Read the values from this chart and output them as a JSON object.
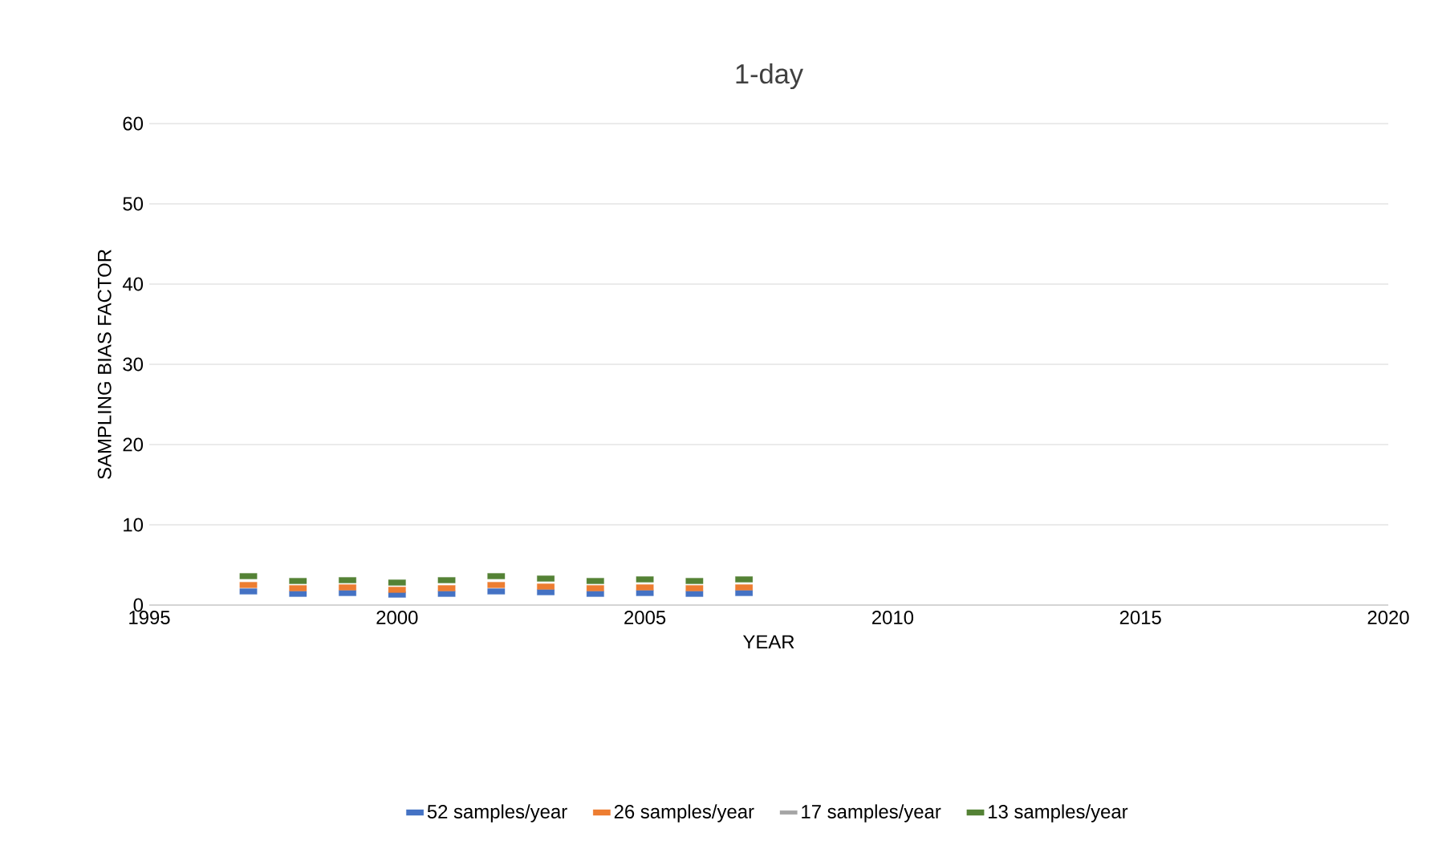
{
  "chart_data": {
    "type": "scatter",
    "title": "1-day",
    "xlabel": "YEAR",
    "ylabel": "SAMPLING BIAS FACTOR",
    "x": [
      1997,
      1998,
      1999,
      2000,
      2001,
      2002,
      2003,
      2004,
      2005,
      2006,
      2007
    ],
    "series": [
      {
        "name": "52 samples/year",
        "color": "#4472c4",
        "values": [
          1.7,
          1.4,
          1.5,
          1.3,
          1.4,
          1.7,
          1.6,
          1.4,
          1.5,
          1.4,
          1.5
        ]
      },
      {
        "name": "26 samples/year",
        "color": "#ed7d31",
        "values": [
          2.5,
          2.1,
          2.2,
          1.9,
          2.1,
          2.5,
          2.3,
          2.1,
          2.2,
          2.1,
          2.2
        ]
      },
      {
        "name": "17 samples/year",
        "color": "#a5a5a5",
        "values": [
          null,
          null,
          null,
          null,
          null,
          null,
          null,
          null,
          null,
          null,
          null
        ]
      },
      {
        "name": "13 samples/year",
        "color": "#548235",
        "values": [
          3.6,
          3.0,
          3.1,
          2.8,
          3.1,
          3.6,
          3.3,
          3.0,
          3.2,
          3.0,
          3.2
        ]
      }
    ],
    "xlim": [
      1995,
      2020
    ],
    "xticks": [
      1995,
      2000,
      2005,
      2010,
      2015,
      2020
    ],
    "ylim": [
      0,
      60
    ],
    "yticks": [
      0,
      10,
      20,
      30,
      40,
      50,
      60
    ],
    "grid": "y",
    "legend": "bottom",
    "marker": "square"
  }
}
